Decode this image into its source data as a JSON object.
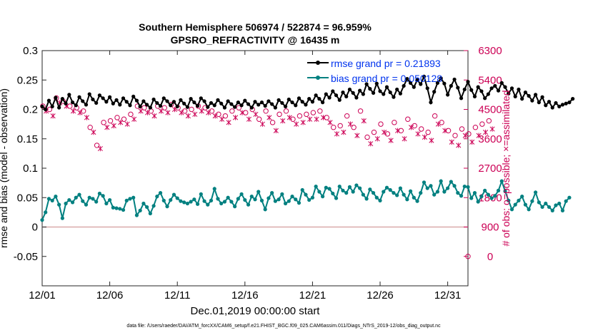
{
  "chart_data": {
    "type": "line",
    "title": "Southern Hemisphere 506974 / 522874 = 96.959%",
    "subtitle": "GPSRO_REFRACTIVITY @ 16435 m",
    "xlabel": "Dec.01,2019 00:00:00 start",
    "ylabel_left": "rmse and bias (model - observation)",
    "ylabel_right": "# of obs: o=possible; ×=assimilated",
    "footer": "data file: /Users/raeder/DAI/ATM_forcXX/CAM6_setup/f.e21.FHIST_BGC.f09_025.CAM6assim.011/Diags_NTrS_2019-12/obs_diag_output.nc",
    "xlim": [
      1,
      32.5
    ],
    "ylim_left": [
      -0.1,
      0.3
    ],
    "ylim_right": [
      -900,
      6300
    ],
    "x_ticks": [
      1,
      6,
      11,
      16,
      21,
      26,
      31
    ],
    "x_tick_labels": [
      "12/01",
      "12/06",
      "12/11",
      "12/16",
      "12/21",
      "12/26",
      "12/31"
    ],
    "y_ticks_left": [
      -0.05,
      0,
      0.05,
      0.1,
      0.15,
      0.2,
      0.25,
      0.3
    ],
    "y_tick_labels_left": [
      "-0.05",
      "0",
      "0.05",
      "0.1",
      "0.15",
      "0.2",
      "0.25",
      "0.3"
    ],
    "y_ticks_right": [
      0,
      900,
      1800,
      2700,
      3600,
      4500,
      5400,
      6300
    ],
    "y_tick_labels_right": [
      "0",
      "900",
      "1800",
      "2700",
      "3600",
      "4500",
      "5400",
      "6300"
    ],
    "legend": [
      {
        "label": "rmse grand pr = 0.21893",
        "color": "#000000"
      },
      {
        "label": "bias grand pr = 0.050128",
        "color": "#008080"
      }
    ],
    "colors": {
      "rmse": "#000000",
      "bias": "#008080",
      "obs": "#cc0055",
      "legend_text": "#0033ee",
      "zero_line": "#d9a9a9"
    },
    "series": [
      {
        "name": "rmse",
        "x_start": 1,
        "x_step": 0.25,
        "values": [
          0.205,
          0.2,
          0.215,
          0.205,
          0.22,
          0.203,
          0.218,
          0.21,
          0.225,
          0.212,
          0.207,
          0.221,
          0.214,
          0.208,
          0.226,
          0.217,
          0.211,
          0.224,
          0.219,
          0.213,
          0.221,
          0.21,
          0.216,
          0.208,
          0.219,
          0.213,
          0.207,
          0.222,
          0.215,
          0.205,
          0.214,
          0.208,
          0.203,
          0.217,
          0.211,
          0.206,
          0.219,
          0.214,
          0.207,
          0.213,
          0.205,
          0.216,
          0.21,
          0.204,
          0.218,
          0.212,
          0.206,
          0.219,
          0.214,
          0.204,
          0.211,
          0.207,
          0.216,
          0.21,
          0.203,
          0.214,
          0.209,
          0.204,
          0.212,
          0.207,
          0.215,
          0.209,
          0.203,
          0.213,
          0.208,
          0.212,
          0.206,
          0.214,
          0.209,
          0.203,
          0.216,
          0.211,
          0.205,
          0.217,
          0.212,
          0.207,
          0.219,
          0.213,
          0.208,
          0.218,
          0.213,
          0.224,
          0.218,
          0.212,
          0.226,
          0.22,
          0.231,
          0.224,
          0.216,
          0.229,
          0.222,
          0.234,
          0.228,
          0.22,
          0.232,
          0.226,
          0.243,
          0.235,
          0.228,
          0.244,
          0.231,
          0.226,
          0.238,
          0.229,
          0.221,
          0.234,
          0.227,
          0.24,
          0.252,
          0.245,
          0.238,
          0.25,
          0.243,
          0.256,
          0.236,
          0.212,
          0.23,
          0.245,
          0.253,
          0.244,
          0.225,
          0.24,
          0.251,
          0.237,
          0.219,
          0.234,
          0.247,
          0.233,
          0.222,
          0.238,
          0.231,
          0.219,
          0.226,
          0.236,
          0.24,
          0.232,
          0.245,
          0.238,
          0.227,
          0.236,
          0.222,
          0.234,
          0.218,
          0.229,
          0.223,
          0.215,
          0.225,
          0.212,
          0.221,
          0.207,
          0.213,
          0.203,
          0.211,
          0.205,
          0.208,
          0.21,
          0.212,
          0.218
        ]
      },
      {
        "name": "bias",
        "x_start": 1,
        "x_step": 0.25,
        "values": [
          0.012,
          0.025,
          0.048,
          0.045,
          0.052,
          0.038,
          0.015,
          0.04,
          0.046,
          0.042,
          0.05,
          0.055,
          0.044,
          0.038,
          0.05,
          0.048,
          0.043,
          0.057,
          0.053,
          0.04,
          0.046,
          0.033,
          0.032,
          0.031,
          0.029,
          0.045,
          0.048,
          0.05,
          0.02,
          0.028,
          0.04,
          0.034,
          0.023,
          0.036,
          0.052,
          0.058,
          0.045,
          0.035,
          0.046,
          0.055,
          0.049,
          0.044,
          0.042,
          0.04,
          0.043,
          0.047,
          0.039,
          0.056,
          0.044,
          0.038,
          0.045,
          0.065,
          0.048,
          0.04,
          0.043,
          0.05,
          0.043,
          0.035,
          0.048,
          0.056,
          0.046,
          0.038,
          0.052,
          0.047,
          0.06,
          0.045,
          0.03,
          0.049,
          0.058,
          0.044,
          0.047,
          0.056,
          0.04,
          0.044,
          0.052,
          0.047,
          0.041,
          0.063,
          0.055,
          0.046,
          0.05,
          0.069,
          0.06,
          0.052,
          0.067,
          0.065,
          0.057,
          0.049,
          0.069,
          0.062,
          0.058,
          0.068,
          0.06,
          0.071,
          0.066,
          0.055,
          0.048,
          0.064,
          0.058,
          0.05,
          0.045,
          0.06,
          0.067,
          0.063,
          0.058,
          0.054,
          0.066,
          0.055,
          0.047,
          0.061,
          0.05,
          0.044,
          0.058,
          0.076,
          0.066,
          0.07,
          0.055,
          0.06,
          0.078,
          0.06,
          0.066,
          0.077,
          0.07,
          0.058,
          0.053,
          0.069,
          0.068,
          0.049,
          0.058,
          0.043,
          0.052,
          0.062,
          0.055,
          0.049,
          0.053,
          0.062,
          0.078,
          0.061,
          0.045,
          0.03,
          0.038,
          0.045,
          0.052,
          0.038,
          0.03,
          0.044,
          0.059,
          0.042,
          0.034,
          0.04,
          0.034,
          0.028,
          0.037,
          0.04,
          0.028,
          0.044,
          0.05
        ]
      },
      {
        "name": "obs_possible",
        "axis": "right",
        "marker": "o",
        "x_start": 1.05,
        "x_step": 0.5,
        "values": [
          4600,
          4500,
          4850,
          4750,
          4600,
          4550,
          4450,
          3950,
          3400,
          4100,
          4150,
          4250,
          4200,
          4350,
          4600,
          4550,
          4450,
          4600,
          4550,
          4650,
          4550,
          4450,
          4500,
          4600,
          4550,
          4450,
          4350,
          4300,
          4450,
          4550,
          4400,
          4500,
          4200,
          4450,
          4100,
          4350,
          4450,
          4200,
          4300,
          4350,
          4400,
          4450,
          4250,
          3950,
          4000,
          4300,
          3950,
          4450,
          3650,
          3800,
          4050,
          3750,
          4100,
          3850,
          4200,
          4000,
          3900,
          3800,
          4300,
          4100,
          3850,
          3700,
          3900,
          3750,
          3950,
          4050,
          4150
        ]
      },
      {
        "name": "obs_assimilated",
        "axis": "right",
        "marker": "x",
        "x_start": 1.3,
        "x_step": 0.5,
        "values": [
          4450,
          4300,
          4700,
          4600,
          4450,
          4400,
          4250,
          3800,
          3300,
          3950,
          4000,
          4100,
          4050,
          4200,
          4450,
          4400,
          4300,
          4450,
          4400,
          4500,
          4400,
          4300,
          4350,
          4450,
          4400,
          4300,
          4200,
          4100,
          4250,
          4400,
          4200,
          4350,
          4050,
          4250,
          3850,
          4150,
          4250,
          4050,
          4100,
          4200,
          4200,
          4250,
          4100,
          3750,
          3800,
          4050,
          3700,
          4150,
          3450,
          3600,
          3800,
          3550,
          3850,
          3600,
          3950,
          3750,
          3650,
          3550,
          4050,
          3850,
          3500,
          3400,
          3700,
          3500,
          3700,
          3800,
          3900
        ]
      },
      {
        "name": "obs_marker_zero",
        "axis": "right",
        "marker": "o",
        "x_start": 32.5,
        "x_step": 0.5,
        "values": [
          0
        ]
      }
    ]
  }
}
